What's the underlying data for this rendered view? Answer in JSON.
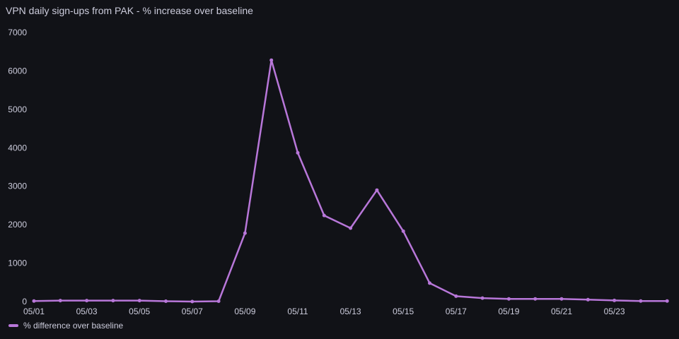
{
  "panel": {
    "title": "VPN daily sign-ups from PAK - % increase over baseline"
  },
  "colors": {
    "background": "#111217",
    "series": "#b877d9",
    "text": "#ccccdc",
    "grid": "#22252b"
  },
  "chart_data": {
    "type": "line",
    "title": "VPN daily sign-ups from PAK - % increase over baseline",
    "xlabel": "",
    "ylabel": "",
    "x": [
      "05/01",
      "05/02",
      "05/03",
      "05/04",
      "05/05",
      "05/06",
      "05/07",
      "05/08",
      "05/09",
      "05/10",
      "05/11",
      "05/12",
      "05/13",
      "05/14",
      "05/15",
      "05/16",
      "05/17",
      "05/18",
      "05/19",
      "05/20",
      "05/21",
      "05/22",
      "05/23",
      "05/24",
      "05/25"
    ],
    "x_tick_labels": [
      "05/01",
      "05/03",
      "05/05",
      "05/07",
      "05/09",
      "05/11",
      "05/13",
      "05/15",
      "05/17",
      "05/19",
      "05/21",
      "05/23"
    ],
    "y_ticks": [
      0,
      1000,
      2000,
      3000,
      4000,
      5000,
      6000,
      7000
    ],
    "ylim": [
      0,
      7000
    ],
    "grid": false,
    "legend_position": "bottom-left",
    "series": [
      {
        "name": "% difference over baseline",
        "values": [
          15,
          25,
          25,
          25,
          25,
          10,
          0,
          10,
          1780,
          6280,
          3870,
          2240,
          1910,
          2900,
          1830,
          480,
          140,
          90,
          70,
          70,
          70,
          50,
          30,
          15,
          15
        ]
      }
    ]
  }
}
